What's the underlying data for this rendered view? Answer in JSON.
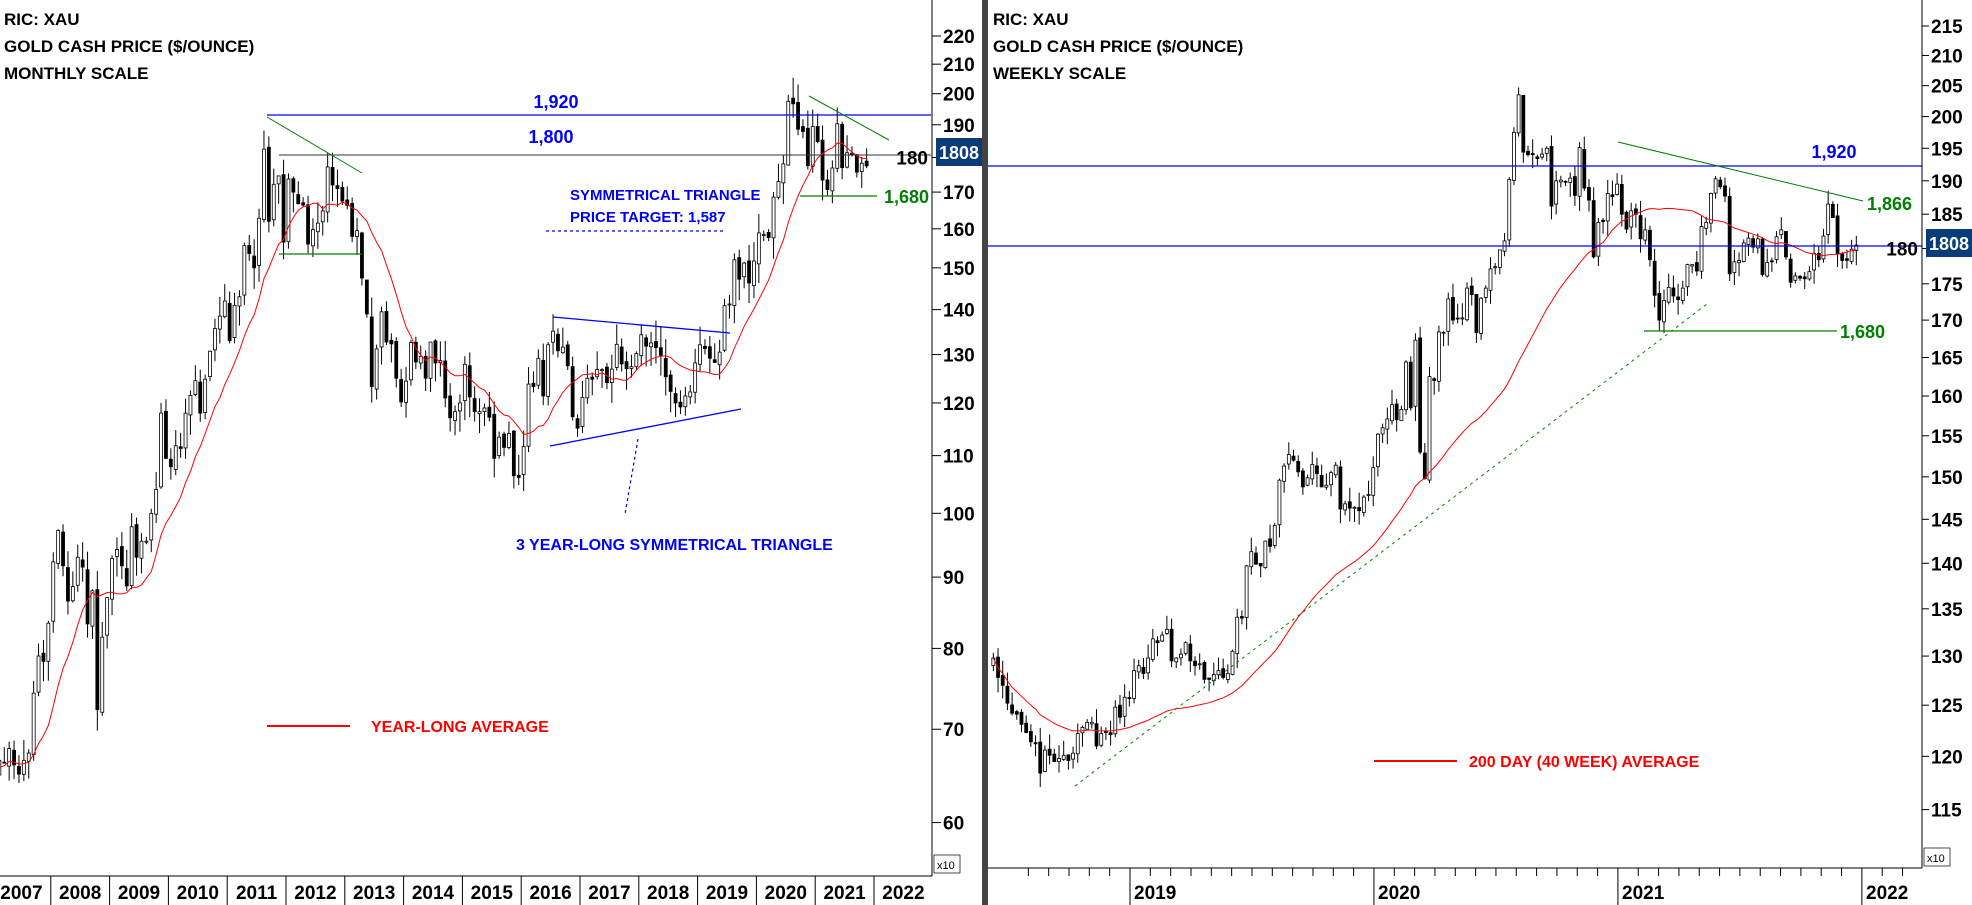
{
  "chart_data": [
    {
      "type": "candlestick",
      "title_lines": [
        "RIC: XAU",
        "GOLD CASH PRICE ($/OUNCE)",
        "MONTHLY SCALE"
      ],
      "scale": "log",
      "ylim": [
        600,
        2300
      ],
      "y_ticks": [
        220,
        210,
        200,
        190,
        180,
        170,
        160,
        150,
        140,
        130,
        120,
        110,
        100,
        90,
        80,
        70,
        60
      ],
      "y_multiplier_label": "x10",
      "x_ticks": [
        "2007",
        "2008",
        "2009",
        "2010",
        "2011",
        "2012",
        "2013",
        "2014",
        "2015",
        "2016",
        "2017",
        "2018",
        "2019",
        "2020",
        "2021",
        "2022"
      ],
      "start": "2007-01",
      "period": "month",
      "closes": [
        650,
        665,
        662,
        678,
        660,
        650,
        665,
        673,
        743,
        790,
        783,
        834,
        923,
        972,
        917,
        865,
        886,
        930,
        915,
        833,
        880,
        723,
        815,
        870,
        928,
        942,
        917,
        887,
        978,
        930,
        955,
        955,
        1000,
        1040,
        1180,
        1095,
        1080,
        1118,
        1113,
        1180,
        1215,
        1245,
        1180,
        1248,
        1307,
        1357,
        1385,
        1420,
        1330,
        1410,
        1430,
        1556,
        1536,
        1500,
        1628,
        1825,
        1620,
        1722,
        1746,
        1565,
        1737,
        1700,
        1668,
        1664,
        1560,
        1598,
        1615,
        1648,
        1772,
        1720,
        1710,
        1675,
        1663,
        1580,
        1595,
        1475,
        1390,
        1233,
        1312,
        1395,
        1327,
        1323,
        1250,
        1202,
        1244,
        1326,
        1284,
        1296,
        1250,
        1327,
        1282,
        1287,
        1210,
        1171,
        1183,
        1200,
        1279,
        1212,
        1183,
        1183,
        1190,
        1172,
        1095,
        1134,
        1115,
        1141,
        1064,
        1061,
        1117,
        1238,
        1233,
        1292,
        1214,
        1321,
        1351,
        1308,
        1316,
        1276,
        1173,
        1151,
        1211,
        1250,
        1248,
        1268,
        1268,
        1241,
        1269,
        1322,
        1280,
        1270,
        1274,
        1302,
        1343,
        1318,
        1325,
        1315,
        1298,
        1253,
        1223,
        1200,
        1192,
        1214,
        1222,
        1282,
        1321,
        1313,
        1292,
        1283,
        1305,
        1409,
        1413,
        1520,
        1472,
        1512,
        1463,
        1517,
        1589,
        1585,
        1577,
        1686,
        1730,
        1781,
        1975,
        1967,
        1886,
        1879,
        1776,
        1895,
        1848,
        1734,
        1707,
        1769,
        1903,
        1770,
        1814,
        1813,
        1757,
        1783,
        1775
      ],
      "moving_average": {
        "periods": 12,
        "label": "YEAR-LONG AVERAGE",
        "color": "#ff0000"
      },
      "last_price_label": "1808",
      "annotations": {
        "resistance_1920": "1,920",
        "level_1800": "1,800",
        "support_1680": "1,680",
        "target_line1": "SYMMETRICAL TRIANGLE",
        "target_line2": "PRICE TARGET: 1,587",
        "triangle_label": "3 YEAR-LONG SYMMETRICAL TRIANGLE"
      }
    },
    {
      "type": "candlestick",
      "title_lines": [
        "RIC: XAU",
        "GOLD CASH PRICE ($/OUNCE)",
        "WEEKLY SCALE"
      ],
      "scale": "log",
      "ylim": [
        1100,
        2200
      ],
      "y_ticks": [
        215,
        210,
        205,
        200,
        195,
        190,
        185,
        180,
        175,
        170,
        165,
        160,
        155,
        150,
        145,
        140,
        135,
        130,
        125,
        120,
        115
      ],
      "y_multiplier_label": "x10",
      "x_ticks": [
        "2019",
        "2020",
        "2021",
        "2022"
      ],
      "start": "2018-06",
      "period": "week",
      "closes": [
        1298,
        1278,
        1270,
        1252,
        1242,
        1241,
        1231,
        1223,
        1214,
        1212,
        1184,
        1206,
        1201,
        1195,
        1198,
        1201,
        1196,
        1203,
        1222,
        1228,
        1233,
        1233,
        1210,
        1222,
        1223,
        1221,
        1248,
        1238,
        1258,
        1257,
        1285,
        1290,
        1282,
        1298,
        1318,
        1314,
        1322,
        1328,
        1295,
        1298,
        1302,
        1314,
        1295,
        1290,
        1292,
        1276,
        1276,
        1281,
        1285,
        1278,
        1282,
        1305,
        1341,
        1340,
        1397,
        1413,
        1399,
        1397,
        1425,
        1419,
        1443,
        1496,
        1513,
        1527,
        1520,
        1506,
        1488,
        1499,
        1515,
        1504,
        1488,
        1490,
        1505,
        1514,
        1462,
        1468,
        1463,
        1464,
        1460,
        1476,
        1479,
        1511,
        1552,
        1560,
        1571,
        1589,
        1570,
        1583,
        1644,
        1585,
        1673,
        1530,
        1498,
        1625,
        1620,
        1684,
        1683,
        1729,
        1700,
        1702,
        1703,
        1744,
        1735,
        1683,
        1730,
        1744,
        1771,
        1774,
        1798,
        1811,
        1902,
        1975,
        2035,
        1944,
        1940,
        1940,
        1934,
        1941,
        1950,
        1862,
        1900,
        1901,
        1899,
        1904,
        1878,
        1951,
        1889,
        1871,
        1788,
        1838,
        1839,
        1881,
        1876,
        1895,
        1850,
        1828,
        1855,
        1850,
        1814,
        1827,
        1784,
        1734,
        1700,
        1727,
        1745,
        1733,
        1728,
        1744,
        1777,
        1777,
        1768,
        1832,
        1838,
        1881,
        1903,
        1891,
        1877,
        1764,
        1781,
        1783,
        1808,
        1815,
        1802,
        1814,
        1763,
        1780,
        1781,
        1817,
        1827,
        1788,
        1752,
        1761,
        1758,
        1757,
        1767,
        1793,
        1784,
        1818,
        1865,
        1845,
        1792,
        1783,
        1783,
        1799,
        1805
      ],
      "moving_average": {
        "periods": 40,
        "label": "200 DAY (40 WEEK) AVERAGE",
        "color": "#ff0000"
      },
      "last_price_label": "1808",
      "annotations": {
        "resistance_1920": "1,920",
        "trendline_1866": "1,866",
        "support_1680": "1,680"
      }
    }
  ],
  "colors": {
    "blue": "#0000ff",
    "green": "#008000",
    "red": "#ff0000",
    "price_box": "#0a3c7a",
    "divider": "#444444"
  }
}
